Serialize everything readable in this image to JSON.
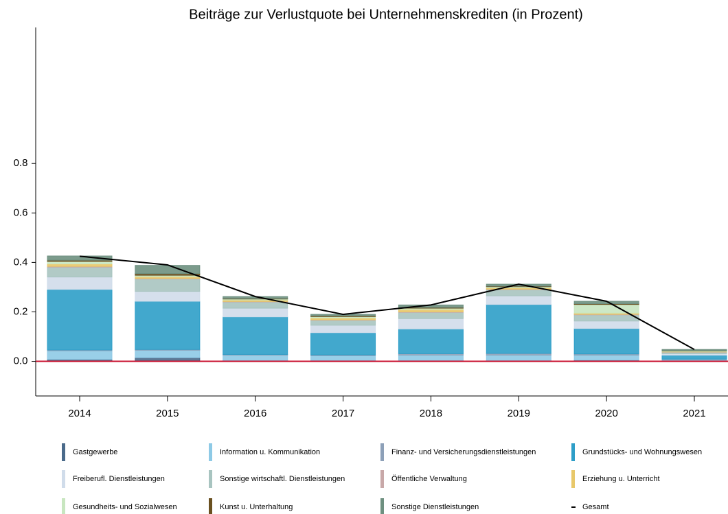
{
  "chart_data": {
    "type": "bar",
    "stacked": true,
    "title": "Beiträge zur Verlustquote bei Unternehmenskrediten (in Prozent)",
    "categories": [
      "2014",
      "2015",
      "2016",
      "2017",
      "2018",
      "2019",
      "2020",
      "2021"
    ],
    "ylim": [
      -0.14,
      1.35
    ],
    "yticks": [
      {
        "value": 0,
        "label": "0.0"
      },
      0.2,
      0.4,
      0.6,
      0.8
    ],
    "zero_line_color": "#c8102e",
    "series": [
      {
        "name": "Gastgewerbe",
        "color": "#4a6a8a",
        "values": [
          0.008,
          0.015,
          0.003,
          0.003,
          0.003,
          0.003,
          0.005,
          0.002
        ]
      },
      {
        "name": "Information u. Kommunikation",
        "color": "#8ecae6",
        "values": [
          0.035,
          0.03,
          0.022,
          0.02,
          0.022,
          0.022,
          0.02,
          0.005
        ]
      },
      {
        "name": "Finanz- und Versicherungsdienstleistungen",
        "color": "#8da0b8",
        "values": [
          0.003,
          0.003,
          0.003,
          0.003,
          0.006,
          0.007,
          0.005,
          0.002
        ]
      },
      {
        "name": "Grundstücks- und Wohnungswesen",
        "color": "#2e9ec8",
        "values": [
          0.245,
          0.195,
          0.152,
          0.09,
          0.1,
          0.198,
          0.103,
          0.016
        ]
      },
      {
        "name": "Freiberufl. Dienstleistungen",
        "color": "#d0dcea",
        "values": [
          0.05,
          0.04,
          0.035,
          0.03,
          0.042,
          0.035,
          0.03,
          0.006
        ]
      },
      {
        "name": "Sonstige wirtschaftl. Dienstleistungen",
        "color": "#a8c4c0",
        "values": [
          0.04,
          0.05,
          0.025,
          0.02,
          0.025,
          0.025,
          0.025,
          0.006
        ]
      },
      {
        "name": "Öffentliche Verwaltung",
        "color": "#c8a8a8",
        "values": [
          0.003,
          0.002,
          0.002,
          0.002,
          0.002,
          0.002,
          0.002,
          0.001
        ]
      },
      {
        "name": "Erziehung u. Unterricht",
        "color": "#e8c86a",
        "values": [
          0.01,
          0.008,
          0.006,
          0.008,
          0.01,
          0.006,
          0.005,
          0.002
        ]
      },
      {
        "name": "Gesundheits- und Sozialwesen",
        "color": "#c8e6c0",
        "values": [
          0.01,
          0.005,
          0.004,
          0.005,
          0.005,
          0.004,
          0.035,
          0.002
        ]
      },
      {
        "name": "Kunst u. Unterhaltung",
        "color": "#6a5020",
        "values": [
          0.005,
          0.007,
          0.002,
          0.003,
          0.003,
          0.002,
          0.003,
          0.001
        ]
      },
      {
        "name": "Sonstige Dienstleistungen",
        "color": "#6e9080",
        "values": [
          0.017,
          0.033,
          0.008,
          0.006,
          0.01,
          0.008,
          0.01,
          0.005
        ]
      },
      {
        "name": "Gesamt",
        "type": "line",
        "color": "#000000",
        "values": [
          0.425,
          0.39,
          0.262,
          0.19,
          0.228,
          0.312,
          0.243,
          0.048
        ]
      }
    ]
  }
}
